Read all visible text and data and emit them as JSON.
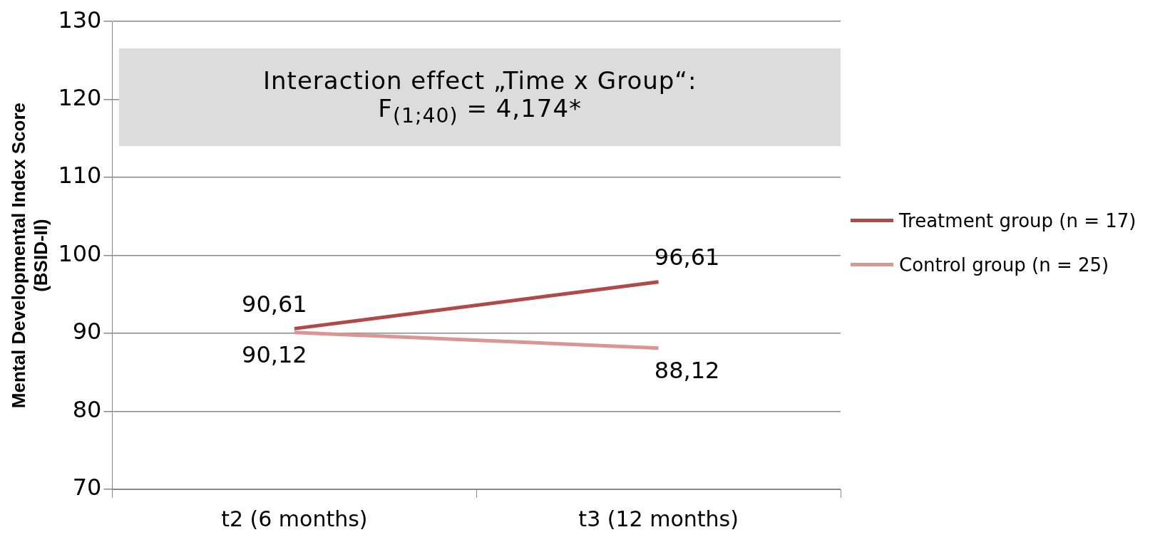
{
  "chart_data": {
    "type": "line",
    "categories": [
      "t2 (6 months)",
      "t3 (12 months)"
    ],
    "series": [
      {
        "name": "Treatment group (n = 17)",
        "color": "#b04a48",
        "values": [
          90.61,
          96.61
        ],
        "value_labels": [
          "90,61",
          "96,61"
        ]
      },
      {
        "name": "Control group (n = 25)",
        "color": "#d99694",
        "values": [
          90.12,
          88.12
        ],
        "value_labels": [
          "90,12",
          "88,12"
        ]
      }
    ],
    "ylabel": "Mental Developmental Index Score\n(BSID-II)",
    "ylim": [
      70,
      130
    ],
    "yticks": [
      70,
      80,
      90,
      100,
      110,
      120,
      130
    ],
    "grid": "y",
    "legend": "right",
    "marker": "none",
    "line_style": "solid",
    "annotations": [
      "Interaction effect „Time x Group“: F$_{(1;40)}$ = 4,174*"
    ]
  }
}
